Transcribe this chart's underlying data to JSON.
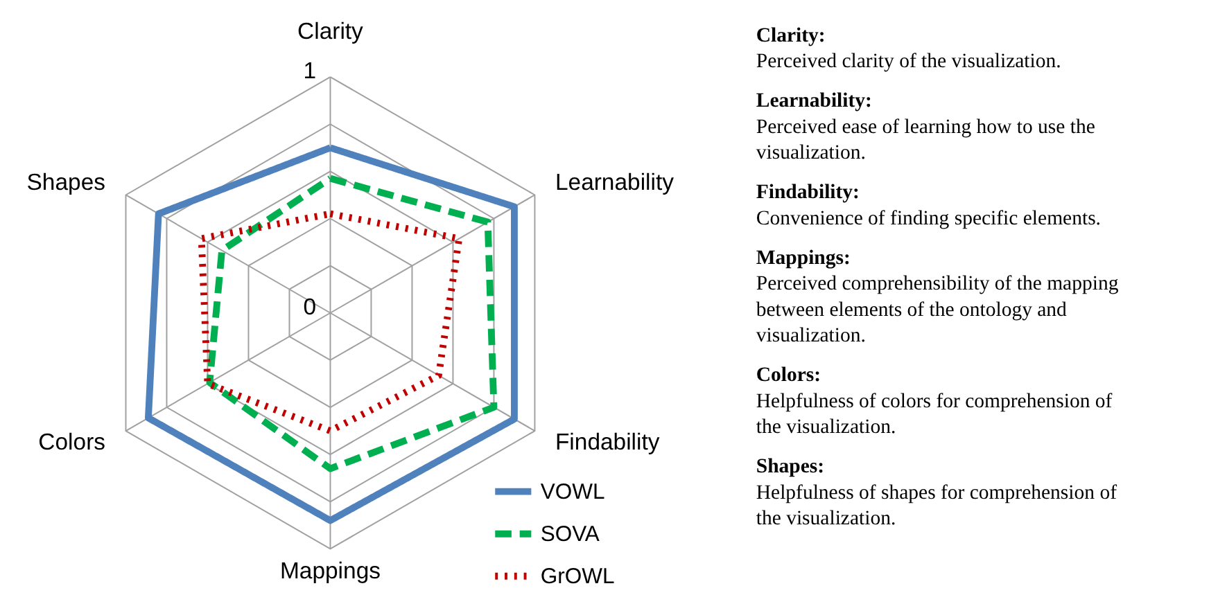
{
  "chart_data": {
    "type": "radar",
    "categories": [
      "Clarity",
      "Learnability",
      "Findability",
      "Mappings",
      "Colors",
      "Shapes"
    ],
    "series": [
      {
        "name": "VOWL",
        "color": "#4f81bd",
        "line_style": "solid",
        "values": [
          0.7,
          0.9,
          0.9,
          0.88,
          0.89,
          0.84
        ]
      },
      {
        "name": "SOVA",
        "color": "#00b050",
        "line_style": "dashed",
        "values": [
          0.57,
          0.77,
          0.8,
          0.66,
          0.59,
          0.53
        ]
      },
      {
        "name": "GrOWL",
        "color": "#c00000",
        "line_style": "dotted",
        "values": [
          0.42,
          0.63,
          0.53,
          0.5,
          0.6,
          0.63
        ]
      }
    ],
    "ylim": [
      0,
      1
    ],
    "yticks": [
      0,
      1
    ],
    "grid": true,
    "legend": "bottom right",
    "annotations": [
      "Clarity:",
      "Perceived clarity of the visualization.",
      "Learnability:",
      "Perceived ease of learning how to use the visualization.",
      "Findability:",
      "Convenience of finding specific elements.",
      "Mappings:",
      "Perceived comprehensibility of the mapping between elements of the ontology and visualization.",
      "Colors:",
      "Helpfulness of colors for comprehension of the visualization.",
      "Shapes:",
      "Helpfulness of shapes for comprehension of the visualization."
    ]
  }
}
